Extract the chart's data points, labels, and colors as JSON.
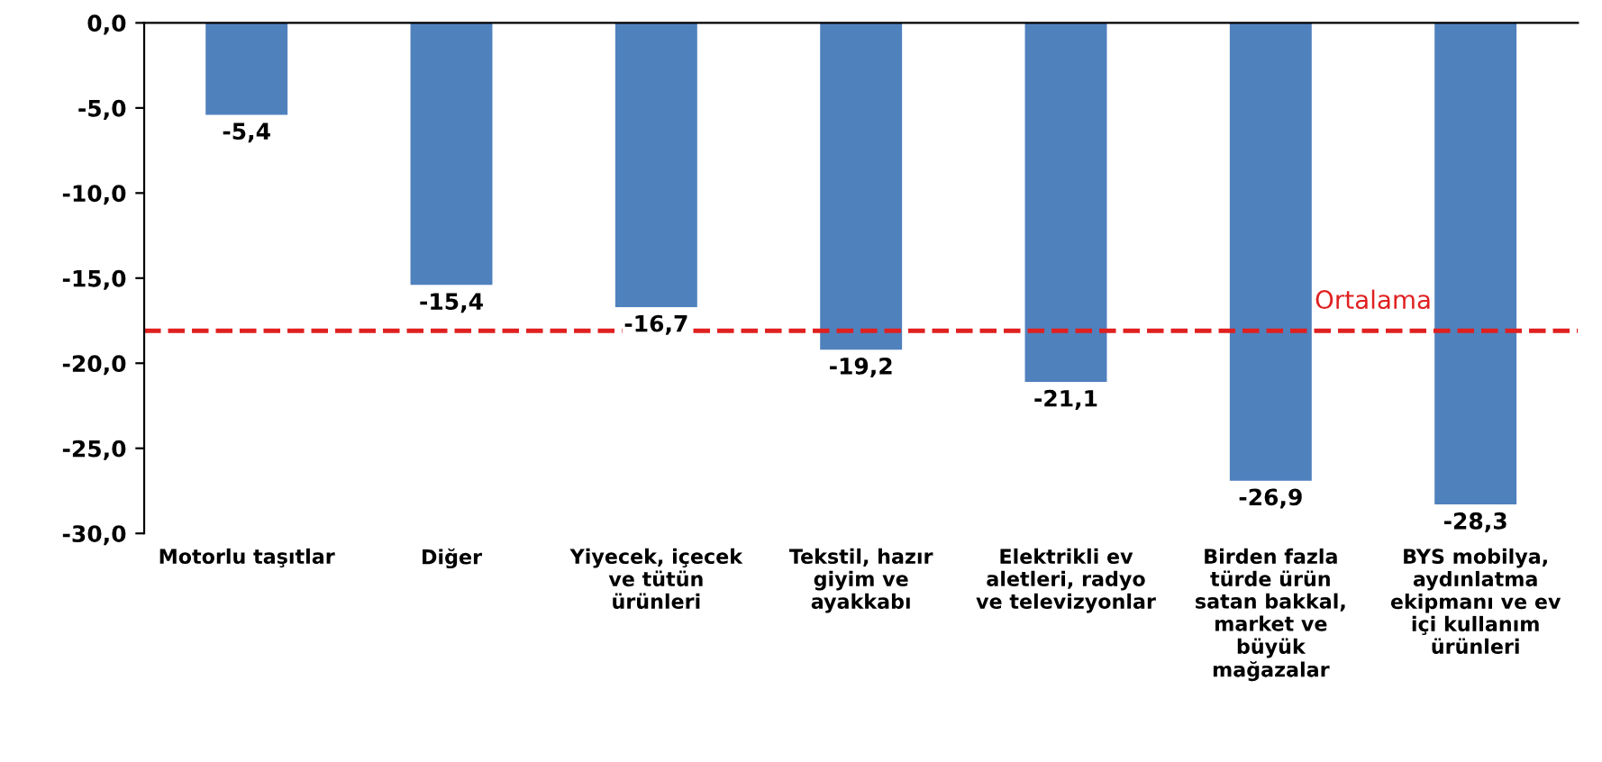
{
  "chart_data": {
    "type": "bar",
    "categories": [
      "Motorlu taşıtlar",
      "Diğer",
      "Yiyecek, içecek\nve tütün\nürünleri",
      "Tekstil, hazır\ngiyim ve\nayakkabı",
      "Elektrikli ev\naletleri, radyo\nve televizyonlar",
      "Birden fazla\ntürde ürün\nsatan bakkal,\nmarket ve\nbüyük\nmağazalar",
      "BYS mobilya,\naydınlatma\nekipmanı ve ev\niçi kullanım\nürünleri"
    ],
    "values": [
      -5.4,
      -15.4,
      -16.7,
      -19.2,
      -21.1,
      -26.9,
      -28.3
    ],
    "value_labels": [
      "-5,4",
      "-15,4",
      "-16,7",
      "-19,2",
      "-21,1",
      "-26,9",
      "-28,3"
    ],
    "color": "#4f81bd",
    "ylim": [
      -30,
      0
    ],
    "yticks": [
      {
        "value": 0,
        "label": "0,0"
      },
      {
        "value": -5,
        "label": "-5,0"
      },
      {
        "value": -10,
        "label": "-10,0"
      },
      {
        "value": -15,
        "label": "-15,0"
      },
      {
        "value": -20,
        "label": "-20,0"
      },
      {
        "value": -25,
        "label": "-25,0"
      },
      {
        "value": -30,
        "label": "-30,0"
      }
    ],
    "ref_lines": [
      {
        "axis": "y",
        "value": -18.1,
        "label": "Ortalama",
        "color": "#e02020",
        "line_style": "dashed"
      }
    ],
    "grid": false,
    "legend": false
  }
}
